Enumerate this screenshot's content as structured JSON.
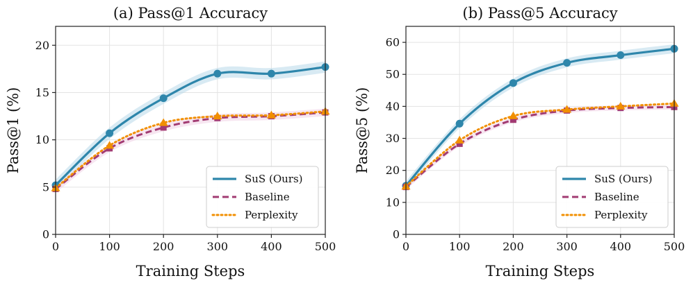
{
  "colors": {
    "sus": "#2e86ab",
    "baseline": "#a23b72",
    "perplexity": "#f18f01",
    "sus_band": "#b8d8ea",
    "baseline_band": "#f1d2e6"
  },
  "legend_labels": [
    "SuS (Ours)",
    "Baseline",
    "Perplexity"
  ],
  "chart_data": [
    {
      "type": "line",
      "title": "(a) Pass@1 Accuracy",
      "xlabel": "Training Steps",
      "ylabel": "Pass@1 (%)",
      "xlim": [
        0,
        500
      ],
      "ylim": [
        0,
        22
      ],
      "xticks": [
        0,
        100,
        200,
        300,
        400,
        500
      ],
      "yticks": [
        0,
        5,
        10,
        15,
        20
      ],
      "grid": true,
      "legend_position": "lower-right",
      "x": [
        0,
        100,
        200,
        300,
        400,
        500
      ],
      "series": [
        {
          "name": "SuS (Ours)",
          "key": "sus",
          "values": [
            5.2,
            10.7,
            14.4,
            17.0,
            17.0,
            17.7
          ],
          "marker": "circle",
          "dash": "solid",
          "band": 0.6
        },
        {
          "name": "Baseline",
          "key": "baseline",
          "values": [
            4.8,
            9.1,
            11.3,
            12.3,
            12.5,
            12.9
          ],
          "marker": "square",
          "dash": "dashed",
          "band": 0.4
        },
        {
          "name": "Perplexity",
          "key": "perplexity",
          "values": [
            4.9,
            9.4,
            11.8,
            12.5,
            12.6,
            13.0
          ],
          "marker": "triangle",
          "dash": "dotted",
          "band": 0
        }
      ]
    },
    {
      "type": "line",
      "title": "(b) Pass@5 Accuracy",
      "xlabel": "Training Steps",
      "ylabel": "Pass@5 (%)",
      "xlim": [
        0,
        500
      ],
      "ylim": [
        0,
        65
      ],
      "xticks": [
        0,
        100,
        200,
        300,
        400,
        500
      ],
      "yticks": [
        0,
        10,
        20,
        30,
        40,
        50,
        60
      ],
      "grid": true,
      "legend_position": "lower-right",
      "x": [
        0,
        100,
        200,
        300,
        400,
        500
      ],
      "series": [
        {
          "name": "SuS (Ours)",
          "key": "sus",
          "values": [
            15.2,
            34.6,
            47.3,
            53.6,
            56.0,
            58.0
          ],
          "marker": "circle",
          "dash": "solid",
          "band": 1.4
        },
        {
          "name": "Baseline",
          "key": "baseline",
          "values": [
            14.8,
            28.3,
            35.8,
            38.7,
            39.5,
            39.8
          ],
          "marker": "square",
          "dash": "dashed",
          "band": 0.8
        },
        {
          "name": "Perplexity",
          "key": "perplexity",
          "values": [
            15.0,
            29.4,
            37.0,
            39.0,
            40.0,
            40.9
          ],
          "marker": "triangle",
          "dash": "dotted",
          "band": 0
        }
      ]
    }
  ]
}
